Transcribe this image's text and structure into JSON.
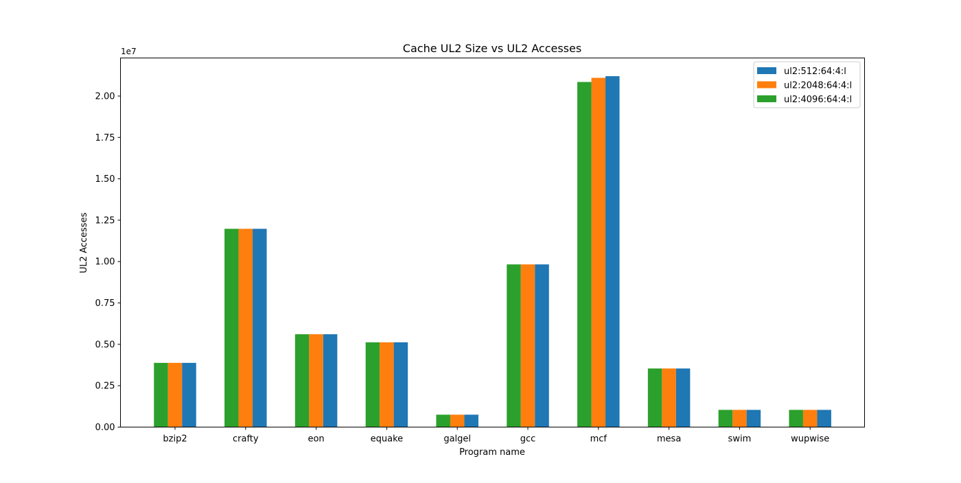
{
  "chart_data": {
    "type": "bar",
    "title": "Cache UL2 Size vs UL2 Accesses",
    "xlabel": "Program name",
    "ylabel": "UL2 Accesses",
    "y_offset_label": "1e7",
    "y_scale": 10000000,
    "ylim": [
      0,
      22300000
    ],
    "yticks": [
      0,
      2500000,
      5000000,
      7500000,
      10000000,
      12500000,
      15000000,
      17500000,
      20000000
    ],
    "ytick_labels": [
      "0.00",
      "0.25",
      "0.50",
      "0.75",
      "1.00",
      "1.25",
      "1.50",
      "1.75",
      "2.00"
    ],
    "grid": false,
    "legend_position": "top-right",
    "categories": [
      "bzip2",
      "crafty",
      "eon",
      "equake",
      "galgel",
      "gcc",
      "mcf",
      "mesa",
      "swim",
      "wupwise"
    ],
    "series": [
      {
        "name": "ul2:512:64:4:l",
        "color": "#1f77b4",
        "values": [
          3880000,
          11980000,
          5610000,
          5120000,
          750000,
          9830000,
          21200000,
          3540000,
          1040000,
          1040000
        ]
      },
      {
        "name": "ul2:2048:64:4:l",
        "color": "#ff7f0e",
        "values": [
          3880000,
          11980000,
          5610000,
          5120000,
          750000,
          9830000,
          21100000,
          3540000,
          1040000,
          1040000
        ]
      },
      {
        "name": "ul2:4096:64:4:l",
        "color": "#2ca02c",
        "values": [
          3880000,
          11980000,
          5610000,
          5120000,
          750000,
          9830000,
          20850000,
          3540000,
          1040000,
          1040000
        ]
      }
    ],
    "bar_draw_order_left_to_right": [
      "ul2:4096:64:4:l",
      "ul2:2048:64:4:l",
      "ul2:512:64:4:l"
    ]
  }
}
